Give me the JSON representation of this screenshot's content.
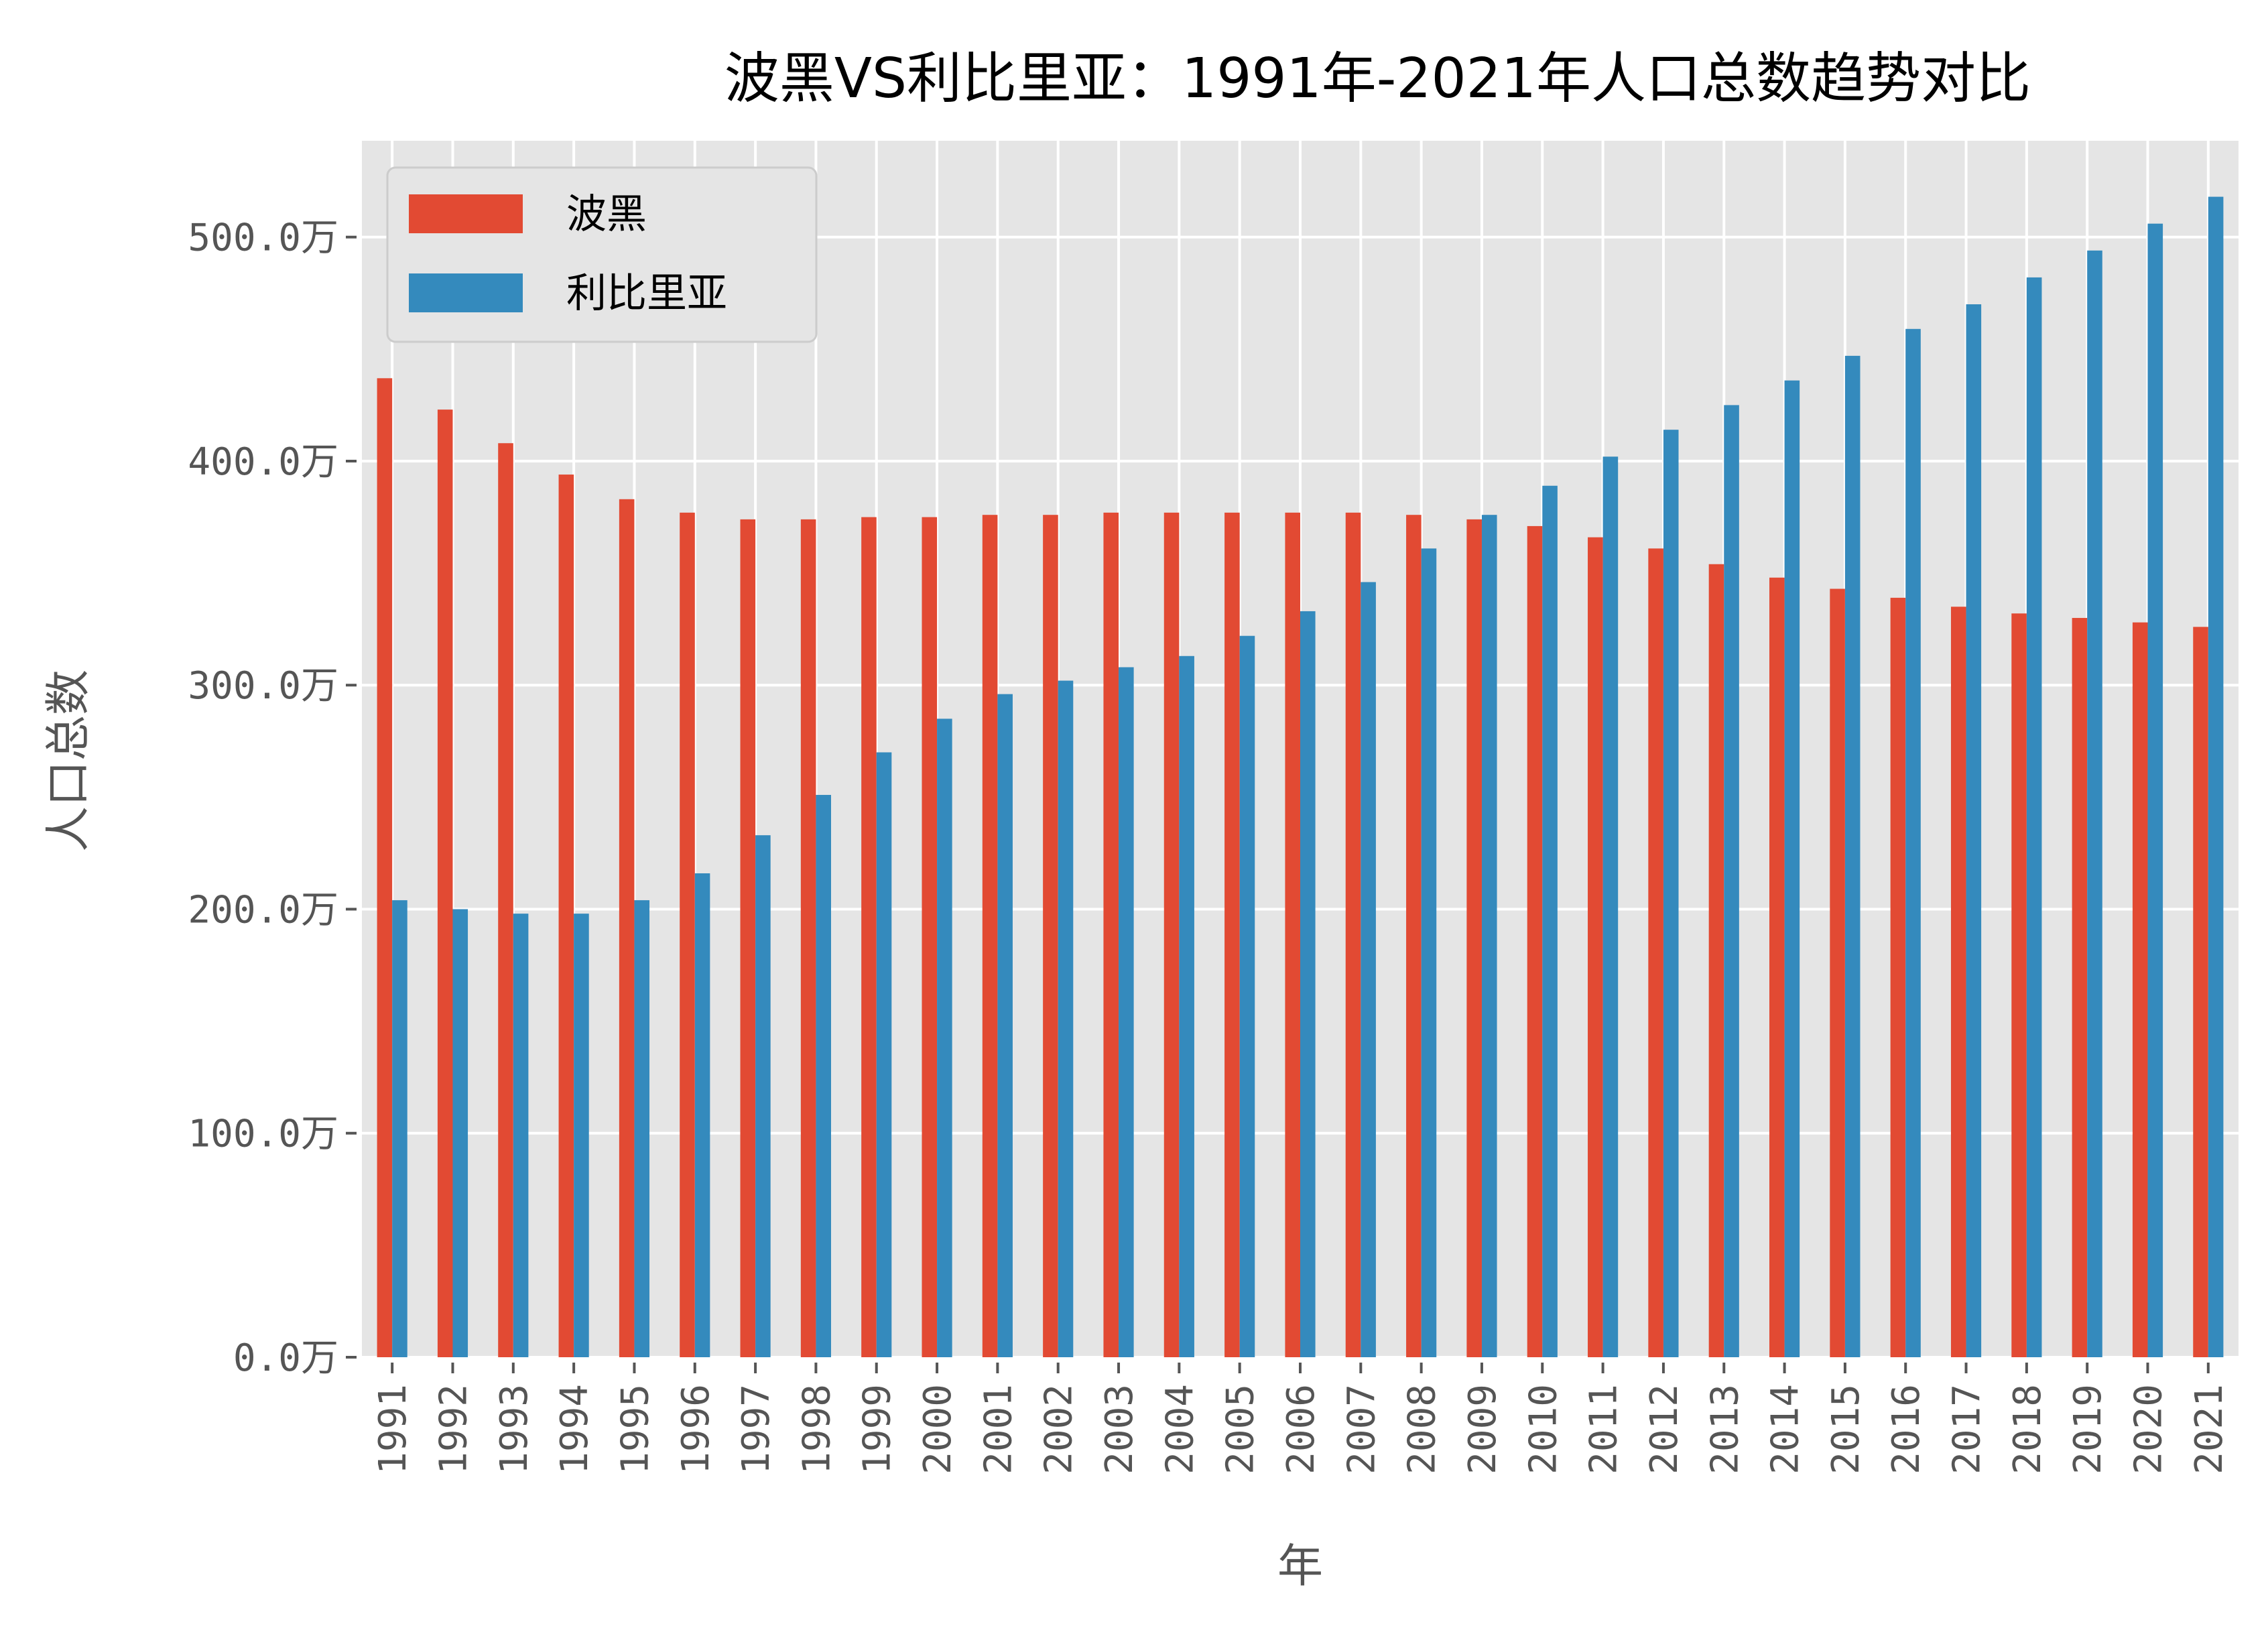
{
  "chart_data": {
    "type": "bar",
    "title": "波黑VS利比里亚：1991年-2021年人口总数趋势对比",
    "xlabel": "年",
    "ylabel": "人口总数",
    "categories": [
      "1991",
      "1992",
      "1993",
      "1994",
      "1995",
      "1996",
      "1997",
      "1998",
      "1999",
      "2000",
      "2001",
      "2002",
      "2003",
      "2004",
      "2005",
      "2006",
      "2007",
      "2008",
      "2009",
      "2010",
      "2011",
      "2012",
      "2013",
      "2014",
      "2015",
      "2016",
      "2017",
      "2018",
      "2019",
      "2020",
      "2021"
    ],
    "series": [
      {
        "name": "波黑",
        "color": "#E24A33",
        "values": [
          437,
          423,
          408,
          394,
          383,
          377,
          374,
          374,
          375,
          375,
          376,
          376,
          377,
          377,
          377,
          377,
          377,
          376,
          374,
          371,
          366,
          361,
          354,
          348,
          343,
          339,
          335,
          332,
          330,
          328,
          326
        ]
      },
      {
        "name": "利比里亚",
        "color": "#348ABD",
        "values": [
          204,
          200,
          198,
          198,
          204,
          216,
          233,
          251,
          270,
          285,
          296,
          302,
          308,
          313,
          322,
          333,
          346,
          361,
          376,
          389,
          402,
          414,
          425,
          436,
          447,
          459,
          470,
          482,
          494,
          506,
          518
        ]
      }
    ],
    "yticks": [
      0,
      100,
      200,
      300,
      400,
      500
    ],
    "ytick_labels": [
      "0.0万",
      "100.0万",
      "200.0万",
      "300.0万",
      "400.0万",
      "500.0万"
    ],
    "ylim": [
      0,
      543
    ],
    "grid": true,
    "legend_position": "top-left",
    "background": "#E5E5E5"
  }
}
